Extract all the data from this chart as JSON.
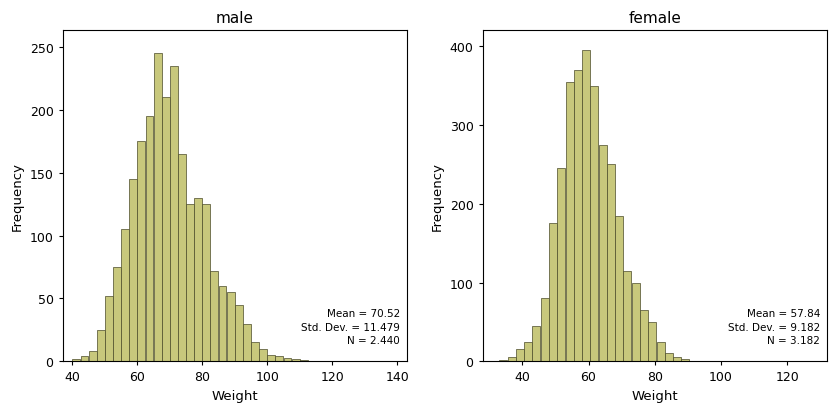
{
  "male": {
    "title": "male",
    "mean": 70.52,
    "std": 11.479,
    "n": 2440,
    "xlabel": "Weight",
    "ylabel": "Frequency",
    "xlim": [
      37,
      143
    ],
    "ylim": [
      0,
      263
    ],
    "xticks": [
      40,
      60,
      80,
      100,
      120,
      140
    ],
    "yticks": [
      0,
      50,
      100,
      150,
      200,
      250
    ],
    "annotation": "Mean = 70.52\nStd. Dev. = 11.479\nN = 2.440",
    "bar_values": [
      2,
      4,
      8,
      25,
      52,
      75,
      105,
      145,
      175,
      195,
      245,
      210,
      235,
      165,
      125,
      130,
      125,
      72,
      60,
      55,
      45,
      30,
      15,
      10,
      5,
      4,
      3,
      2,
      1
    ],
    "bin_start": 40,
    "bin_width": 2.5
  },
  "female": {
    "title": "female",
    "mean": 57.84,
    "std": 9.182,
    "n": 3182,
    "xlabel": "Weight",
    "ylabel": "Frequency",
    "xlim": [
      28,
      132
    ],
    "ylim": [
      0,
      420
    ],
    "xticks": [
      40,
      60,
      80,
      100,
      120
    ],
    "yticks": [
      0,
      100,
      200,
      300,
      400
    ],
    "annotation": "Mean = 57.84\nStd. Dev. = 9.182\nN = 3.182",
    "bar_values": [
      2,
      5,
      15,
      25,
      45,
      80,
      175,
      245,
      355,
      370,
      395,
      350,
      275,
      250,
      185,
      115,
      100,
      65,
      50,
      25,
      10,
      5,
      3,
      1
    ],
    "bin_start": 33,
    "bin_width": 2.5
  },
  "bar_color": "#c8c87c",
  "bar_edge_color": "#4a4a28",
  "background_color": "#ffffff",
  "title_fontsize": 11,
  "label_fontsize": 9.5,
  "tick_fontsize": 9,
  "annotation_fontsize": 7.5
}
